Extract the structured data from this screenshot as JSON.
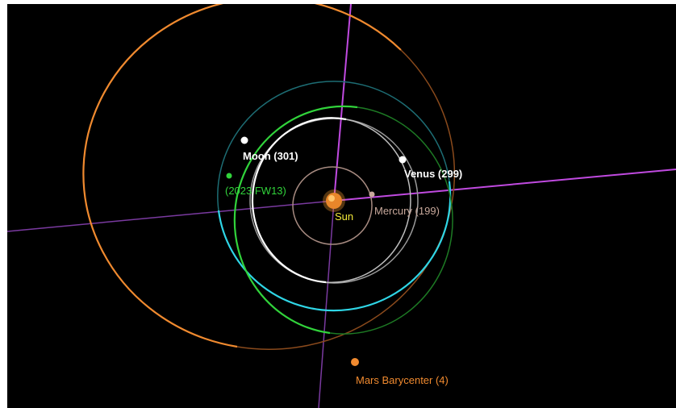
{
  "labels": {
    "sun": "Sun",
    "mercury": "Mercury (199)",
    "venus": "Venus (299)",
    "moon": "Moon (301)",
    "asteroid": "(2023 FW13)",
    "mars": "Mars Barycenter (4)"
  },
  "colors": {
    "background": "#000000",
    "sun": "#f39a32",
    "sun_label": "#f4ea3a",
    "mercury": "#c9a99c",
    "venus": "#ffffff",
    "venus_orbit": "#9a9a9a",
    "earth_orbit": "#2fd6e6",
    "moon": "#ffffff",
    "moon_orbit": "#ffffff",
    "asteroid": "#31d33b",
    "mars": "#f08a2f",
    "ecliptic_axis": "#b04ad6"
  },
  "bodies": [
    {
      "id": "sun",
      "icon": "sun-icon"
    },
    {
      "id": "mercury",
      "icon": "planet-dot-icon"
    },
    {
      "id": "venus",
      "icon": "planet-dot-icon"
    },
    {
      "id": "moon",
      "icon": "planet-dot-icon"
    },
    {
      "id": "asteroid",
      "icon": "planet-dot-icon"
    },
    {
      "id": "mars",
      "icon": "planet-dot-icon"
    }
  ]
}
